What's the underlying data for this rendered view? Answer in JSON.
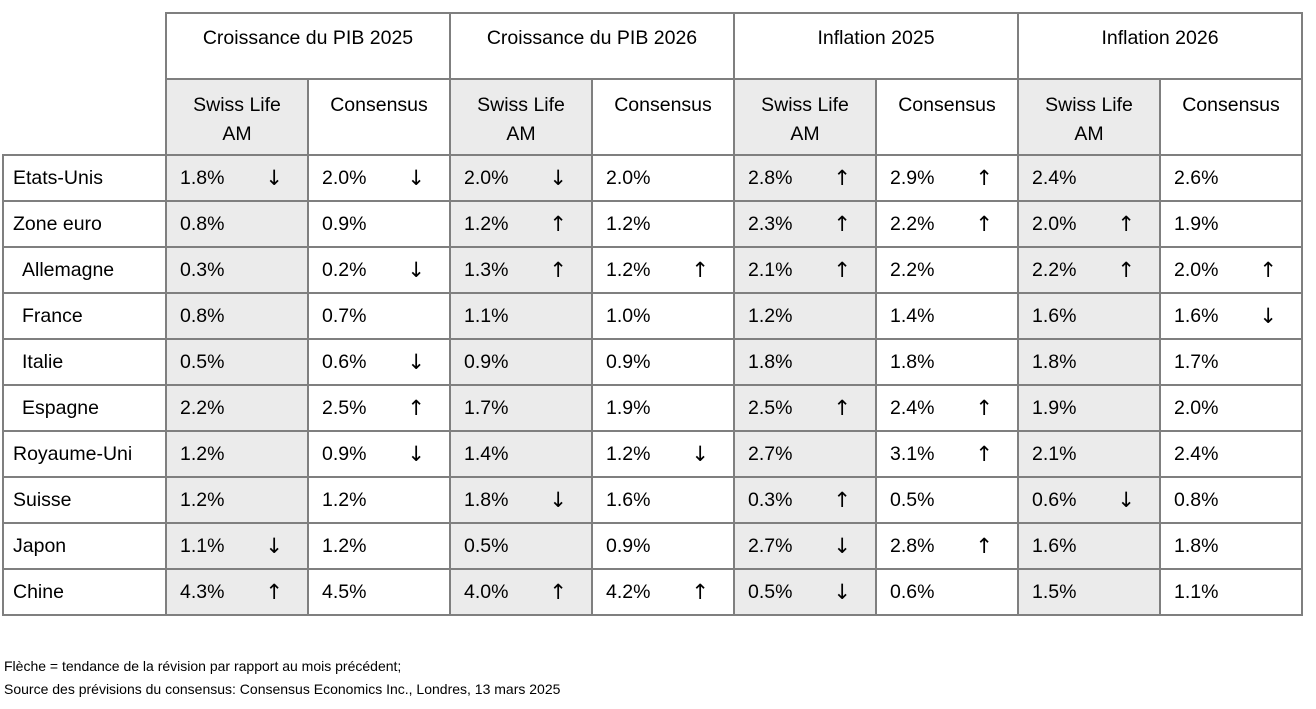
{
  "chart_data": {
    "type": "table",
    "title": "",
    "column_groups": [
      "Croissance du PIB 2025",
      "Croissance du PIB 2026",
      "Inflation 2025",
      "Inflation 2026"
    ],
    "sub_columns": [
      "Swiss Life AM",
      "Consensus"
    ],
    "rows": [
      {
        "country": "Etats-Unis",
        "indent": false,
        "cells": [
          {
            "value": "1.8%",
            "revision": "down"
          },
          {
            "value": "2.0%",
            "revision": "down"
          },
          {
            "value": "2.0%",
            "revision": "down"
          },
          {
            "value": "2.0%",
            "revision": null
          },
          {
            "value": "2.8%",
            "revision": "up"
          },
          {
            "value": "2.9%",
            "revision": "up"
          },
          {
            "value": "2.4%",
            "revision": null
          },
          {
            "value": "2.6%",
            "revision": null
          }
        ]
      },
      {
        "country": "Zone euro",
        "indent": false,
        "cells": [
          {
            "value": "0.8%",
            "revision": null
          },
          {
            "value": "0.9%",
            "revision": null
          },
          {
            "value": "1.2%",
            "revision": "up"
          },
          {
            "value": "1.2%",
            "revision": null
          },
          {
            "value": "2.3%",
            "revision": "up"
          },
          {
            "value": "2.2%",
            "revision": "up"
          },
          {
            "value": "2.0%",
            "revision": "up"
          },
          {
            "value": "1.9%",
            "revision": null
          }
        ]
      },
      {
        "country": "Allemagne",
        "indent": true,
        "cells": [
          {
            "value": "0.3%",
            "revision": null
          },
          {
            "value": "0.2%",
            "revision": "down"
          },
          {
            "value": "1.3%",
            "revision": "up"
          },
          {
            "value": "1.2%",
            "revision": "up"
          },
          {
            "value": "2.1%",
            "revision": "up"
          },
          {
            "value": "2.2%",
            "revision": null
          },
          {
            "value": "2.2%",
            "revision": "up"
          },
          {
            "value": "2.0%",
            "revision": "up"
          }
        ]
      },
      {
        "country": "France",
        "indent": true,
        "cells": [
          {
            "value": "0.8%",
            "revision": null
          },
          {
            "value": "0.7%",
            "revision": null
          },
          {
            "value": "1.1%",
            "revision": null
          },
          {
            "value": "1.0%",
            "revision": null
          },
          {
            "value": "1.2%",
            "revision": null
          },
          {
            "value": "1.4%",
            "revision": null
          },
          {
            "value": "1.6%",
            "revision": null
          },
          {
            "value": "1.6%",
            "revision": "down"
          }
        ]
      },
      {
        "country": "Italie",
        "indent": true,
        "cells": [
          {
            "value": "0.5%",
            "revision": null
          },
          {
            "value": "0.6%",
            "revision": "down"
          },
          {
            "value": "0.9%",
            "revision": null
          },
          {
            "value": "0.9%",
            "revision": null
          },
          {
            "value": "1.8%",
            "revision": null
          },
          {
            "value": "1.8%",
            "revision": null
          },
          {
            "value": "1.8%",
            "revision": null
          },
          {
            "value": "1.7%",
            "revision": null
          }
        ]
      },
      {
        "country": "Espagne",
        "indent": true,
        "cells": [
          {
            "value": "2.2%",
            "revision": null
          },
          {
            "value": "2.5%",
            "revision": "up"
          },
          {
            "value": "1.7%",
            "revision": null
          },
          {
            "value": "1.9%",
            "revision": null
          },
          {
            "value": "2.5%",
            "revision": "up"
          },
          {
            "value": "2.4%",
            "revision": "up"
          },
          {
            "value": "1.9%",
            "revision": null
          },
          {
            "value": "2.0%",
            "revision": null
          }
        ]
      },
      {
        "country": "Royaume-Uni",
        "indent": false,
        "cells": [
          {
            "value": "1.2%",
            "revision": null
          },
          {
            "value": "0.9%",
            "revision": "down"
          },
          {
            "value": "1.4%",
            "revision": null
          },
          {
            "value": "1.2%",
            "revision": "down"
          },
          {
            "value": "2.7%",
            "revision": null
          },
          {
            "value": "3.1%",
            "revision": "up"
          },
          {
            "value": "2.1%",
            "revision": null
          },
          {
            "value": "2.4%",
            "revision": null
          }
        ]
      },
      {
        "country": "Suisse",
        "indent": false,
        "cells": [
          {
            "value": "1.2%",
            "revision": null
          },
          {
            "value": "1.2%",
            "revision": null
          },
          {
            "value": "1.8%",
            "revision": "down"
          },
          {
            "value": "1.6%",
            "revision": null
          },
          {
            "value": "0.3%",
            "revision": "up"
          },
          {
            "value": "0.5%",
            "revision": null
          },
          {
            "value": "0.6%",
            "revision": "down"
          },
          {
            "value": "0.8%",
            "revision": null
          }
        ]
      },
      {
        "country": "Japon",
        "indent": false,
        "cells": [
          {
            "value": "1.1%",
            "revision": "down"
          },
          {
            "value": "1.2%",
            "revision": null
          },
          {
            "value": "0.5%",
            "revision": null
          },
          {
            "value": "0.9%",
            "revision": null
          },
          {
            "value": "2.7%",
            "revision": "down"
          },
          {
            "value": "2.8%",
            "revision": "up"
          },
          {
            "value": "1.6%",
            "revision": null
          },
          {
            "value": "1.8%",
            "revision": null
          }
        ]
      },
      {
        "country": "Chine",
        "indent": false,
        "cells": [
          {
            "value": "4.3%",
            "revision": "up"
          },
          {
            "value": "4.5%",
            "revision": null
          },
          {
            "value": "4.0%",
            "revision": "up"
          },
          {
            "value": "4.2%",
            "revision": "up"
          },
          {
            "value": "0.5%",
            "revision": "down"
          },
          {
            "value": "0.6%",
            "revision": null
          },
          {
            "value": "1.5%",
            "revision": null
          },
          {
            "value": "1.1%",
            "revision": null
          }
        ]
      }
    ],
    "layout": {
      "grid": true,
      "swiss_life_columns_shaded": true
    }
  },
  "icons": {
    "arrow_up": "↑",
    "arrow_down": "↓"
  },
  "colors": {
    "shaded_cell": "#ebebeb",
    "border": "#7f7f7f",
    "background": "#ffffff",
    "text": "#000000"
  },
  "footnotes": [
    "Flèche = tendance de la révision par rapport au mois précédent;",
    "Source des prévisions du consensus: Consensus Economics Inc., Londres, 13 mars 2025"
  ]
}
